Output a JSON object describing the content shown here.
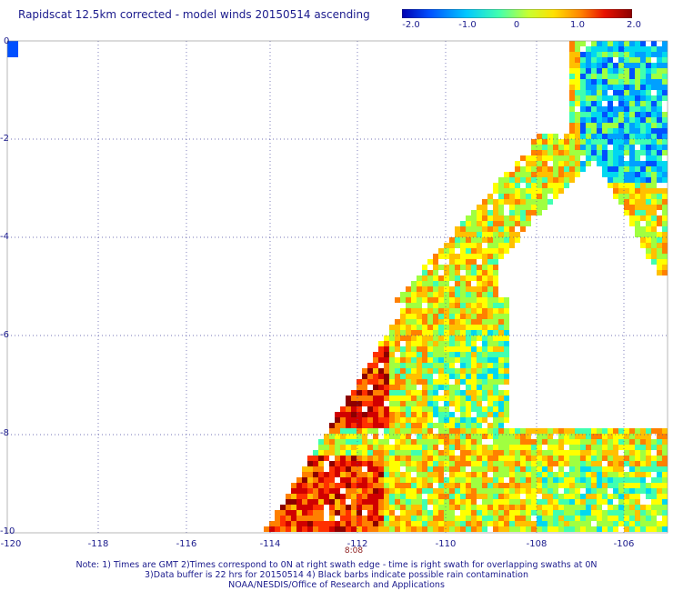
{
  "title": "Rapidscat 12.5km corrected - model winds 20150514 ascending",
  "colorbar": {
    "ticks": [
      "-2.0",
      "-1.0",
      "0",
      "1.0",
      "2.0"
    ],
    "colors": [
      "#0000b0",
      "#0050ff",
      "#00c8ff",
      "#40ffb0",
      "#c8ff30",
      "#ffe000",
      "#ff8000",
      "#e81000",
      "#8c0000"
    ]
  },
  "axes": {
    "y_ticks": [
      "0",
      "-2",
      "-4",
      "-6",
      "-8",
      "-10"
    ],
    "x_ticks": [
      "-120",
      "-118",
      "-116",
      "-114",
      "-112",
      "-110",
      "-108",
      "-106"
    ]
  },
  "time_label": "8:08",
  "notes": {
    "line1": "Note: 1) Times are GMT 2)Times correspond to 0N at right swath edge - time is right swath for overlapping swaths at 0N",
    "line2": "3)Data buffer is 22 hrs for 20150514 4) Black barbs indicate possible rain contamination",
    "line3": "NOAA/NESDIS/Office of Research and Applications"
  }
}
